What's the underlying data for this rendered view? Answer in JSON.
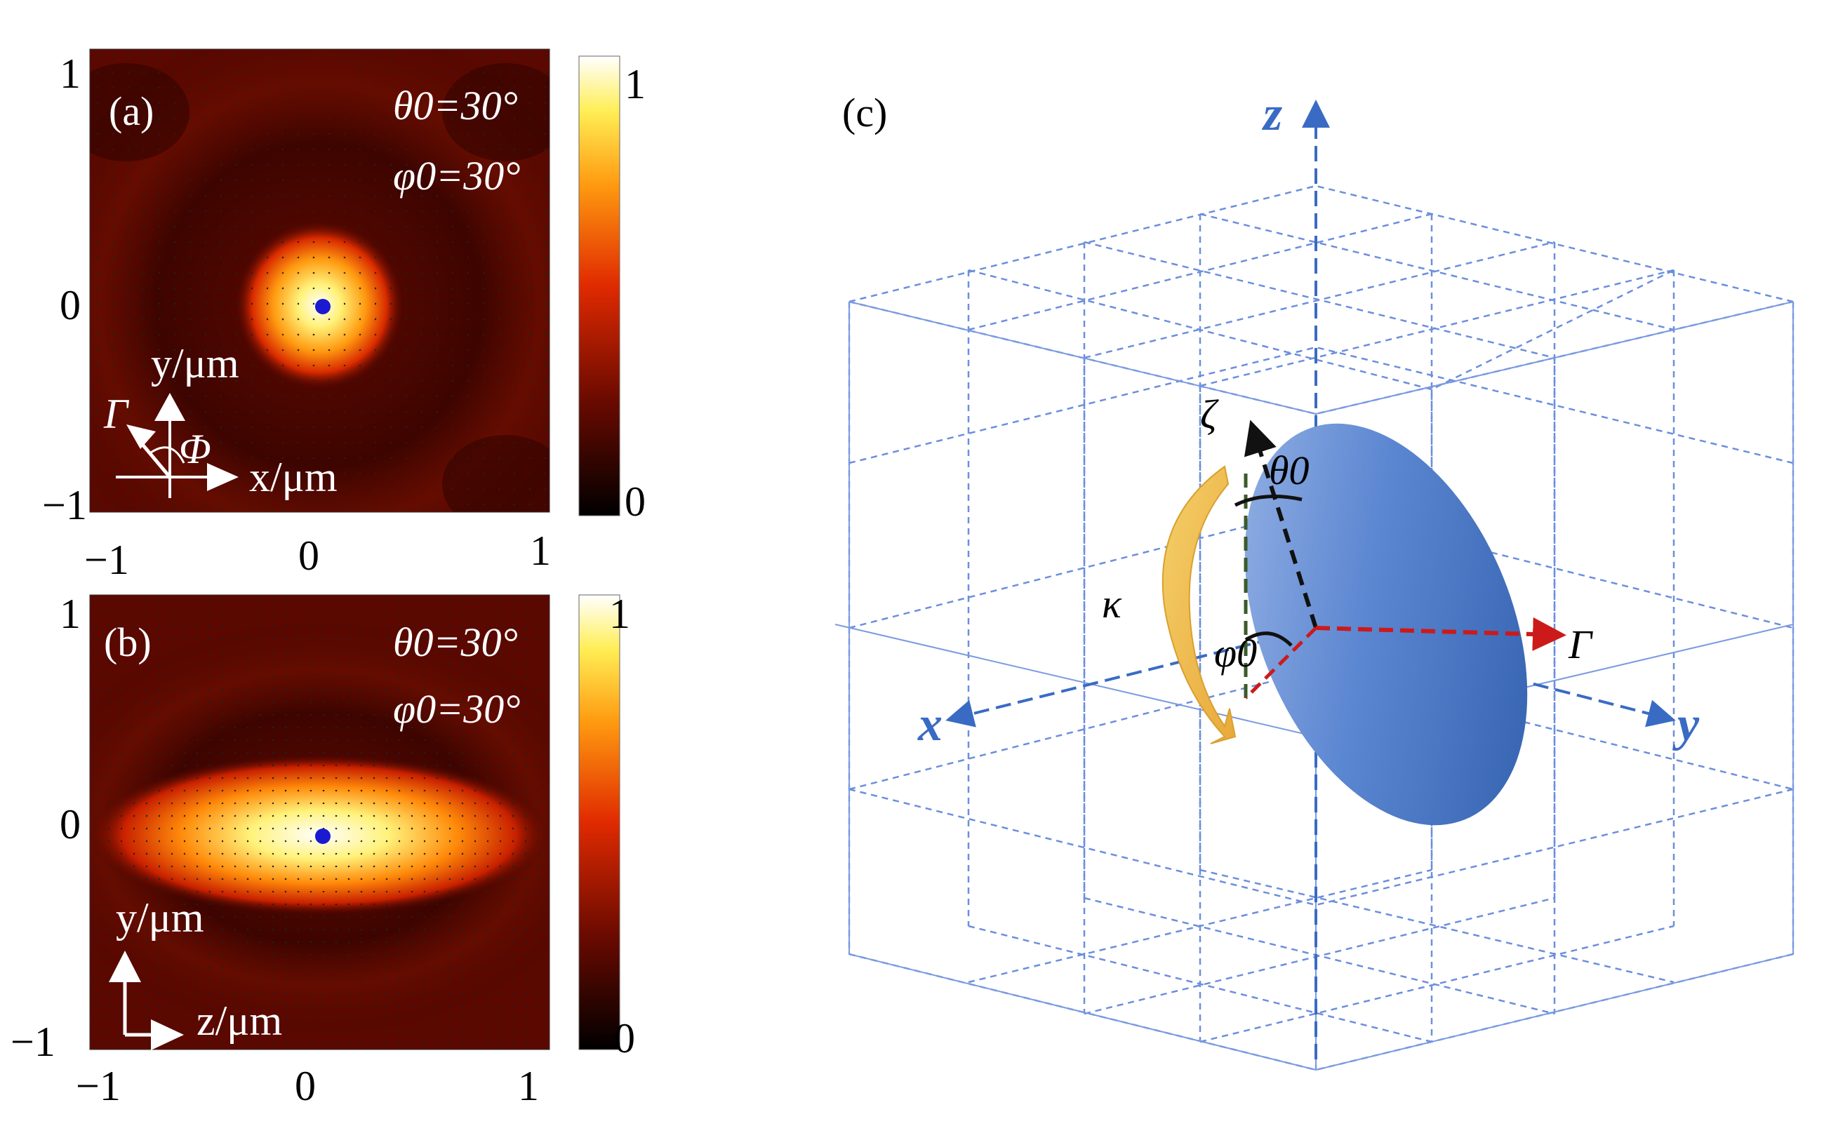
{
  "panels": [
    {
      "label": "(a)",
      "theta": "θ0=30°",
      "phi": "φ0=30°",
      "ticks": {
        "x": [
          "−1",
          "0",
          "1"
        ],
        "y": [
          "1",
          "0",
          "−1"
        ]
      },
      "colorbar": {
        "max": "1",
        "min": "0"
      },
      "axes": {
        "y": "y/μm",
        "x": "x/μm",
        "gamma": "Γ",
        "Phi": "Φ"
      }
    },
    {
      "label": "(b)",
      "theta": "θ0=30°",
      "phi": "φ0=30°",
      "ticks": {
        "x": [
          "−1",
          "0",
          "1"
        ],
        "y": [
          "1",
          "0",
          "−1"
        ]
      },
      "colorbar": {
        "max": "1",
        "min": "0"
      },
      "axes": {
        "y": "y/μm",
        "x": "z/μm"
      }
    }
  ],
  "diagram": {
    "label": "(c)",
    "axes": {
      "x": "x",
      "y": "y",
      "z": "z"
    },
    "zeta": "ζ",
    "theta": "θ0",
    "phi": "φ0",
    "kappa": "κ",
    "gamma": "Γ"
  },
  "colors": {
    "heat_dark": "#1a0000",
    "heat_mid": "#cc2200",
    "heat_bright": "#ffee55",
    "grid": "#6c8fdc",
    "ellipsoid": "#5b86d1",
    "gamma_arrow": "#cc1a1a",
    "kappa_arrow": "#f2c14e"
  }
}
